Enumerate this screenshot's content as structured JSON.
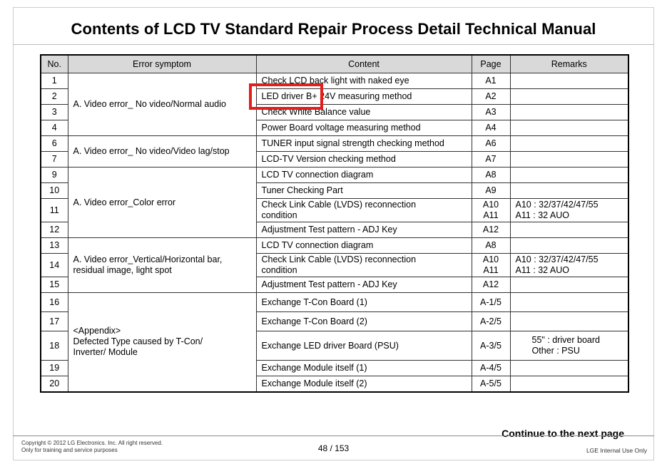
{
  "title": "Contents of LCD TV Standard Repair Process Detail Technical Manual",
  "headers": [
    "No.",
    "Error symptom",
    "Content",
    "Page",
    "Remarks"
  ],
  "groups": {
    "g1": "A. Video error_ No video/Normal audio",
    "g2": "A. Video error_ No video/Video lag/stop",
    "g3": "A. Video error_Color error",
    "g4": "A. Video error_Vertical/Horizontal bar,\nresidual image, light spot",
    "g5": "<Appendix>\nDefected Type caused by T-Con/\nInverter/ Module"
  },
  "rows": [
    {
      "no": "1",
      "content": "Check LCD back light with naked eye",
      "page": "A1",
      "remarks": ""
    },
    {
      "no": "2",
      "content": "LED driver  B+ 24V measuring method",
      "page": "A2",
      "remarks": ""
    },
    {
      "no": "3",
      "content": "Check White Balance value",
      "page": "A3",
      "remarks": ""
    },
    {
      "no": "4",
      "content": "Power Board voltage measuring method",
      "page": "A4",
      "remarks": ""
    },
    {
      "no": "6",
      "content": "TUNER input signal strength checking method",
      "page": "A6",
      "remarks": ""
    },
    {
      "no": "7",
      "content": "LCD-TV Version checking method",
      "page": "A7",
      "remarks": ""
    },
    {
      "no": "9",
      "content": "LCD TV connection diagram",
      "page": "A8",
      "remarks": ""
    },
    {
      "no": "10",
      "content": "Tuner Checking Part",
      "page": "A9",
      "remarks": ""
    },
    {
      "no": "11",
      "content": "Check Link Cable (LVDS) reconnection\ncondition",
      "page": "A10\nA11",
      "remarks": "A10 : 32/37/42/47/55\nA11 : 32 AUO"
    },
    {
      "no": "12",
      "content": "Adjustment Test pattern - ADJ Key",
      "page": "A12",
      "remarks": ""
    },
    {
      "no": "13",
      "content": "LCD TV connection diagram",
      "page": "A8",
      "remarks": ""
    },
    {
      "no": "14",
      "content": "Check Link Cable (LVDS) reconnection\ncondition",
      "page": "A10\nA11",
      "remarks": "A10 : 32/37/42/47/55\nA11 : 32 AUO"
    },
    {
      "no": "15",
      "content": "Adjustment Test pattern - ADJ Key",
      "page": "A12",
      "remarks": ""
    },
    {
      "no": "16",
      "content": "Exchange T-Con Board (1)",
      "page": "A-1/5",
      "remarks": ""
    },
    {
      "no": "17",
      "content": "Exchange T-Con Board (2)",
      "page": "A-2/5",
      "remarks": ""
    },
    {
      "no": "18",
      "content": "Exchange LED driver Board (PSU)",
      "page": "A-3/5",
      "remarks": "55\" : driver board\nOther : PSU"
    },
    {
      "no": "19",
      "content": "Exchange Module itself (1)",
      "page": "A-4/5",
      "remarks": ""
    },
    {
      "no": "20",
      "content": "Exchange Module itself (2)",
      "page": "A-5/5",
      "remarks": ""
    }
  ],
  "continue_text": "Continue to the next page",
  "footer": {
    "copyright": "Copyright © 2012 LG Electronics. Inc. All right reserved.\nOnly for training and service purposes",
    "page": "48 / 153",
    "internal": "LGE Internal Use Only"
  },
  "highlight_color": "#e0201c"
}
